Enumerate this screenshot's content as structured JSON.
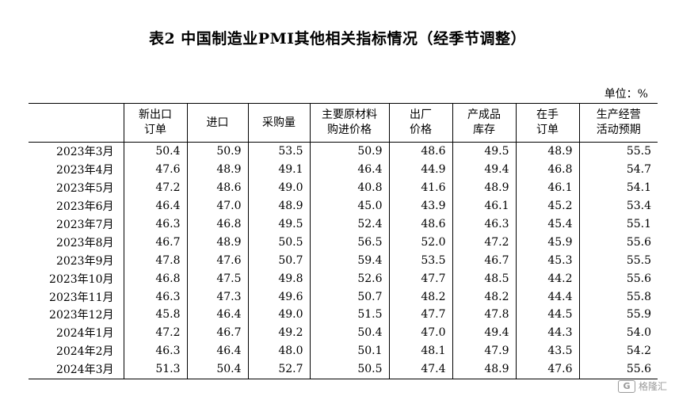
{
  "title": "表2 中国制造业PMI其他相关指标情况（经季节调整）",
  "unit": "单位：%",
  "columns": [
    "",
    [
      "新出口",
      "订单"
    ],
    [
      "进口"
    ],
    [
      "采购量"
    ],
    [
      "主要原材料",
      "购进价格"
    ],
    [
      "出厂",
      "价格"
    ],
    [
      "产成品",
      "库存"
    ],
    [
      "在手",
      "订单"
    ],
    [
      "生产经营",
      "活动预期"
    ]
  ],
  "rows": [
    [
      "2023年3月",
      "50.4",
      "50.9",
      "53.5",
      "50.9",
      "48.6",
      "49.5",
      "48.9",
      "55.5"
    ],
    [
      "2023年4月",
      "47.6",
      "48.9",
      "49.1",
      "46.4",
      "44.9",
      "49.4",
      "46.8",
      "54.7"
    ],
    [
      "2023年5月",
      "47.2",
      "48.6",
      "49.0",
      "40.8",
      "41.6",
      "48.9",
      "46.1",
      "54.1"
    ],
    [
      "2023年6月",
      "46.4",
      "47.0",
      "48.9",
      "45.0",
      "43.9",
      "46.1",
      "45.2",
      "53.4"
    ],
    [
      "2023年7月",
      "46.3",
      "46.8",
      "49.5",
      "52.4",
      "48.6",
      "46.3",
      "45.4",
      "55.1"
    ],
    [
      "2023年8月",
      "46.7",
      "48.9",
      "50.5",
      "56.5",
      "52.0",
      "47.2",
      "45.9",
      "55.6"
    ],
    [
      "2023年9月",
      "47.8",
      "47.6",
      "50.7",
      "59.4",
      "53.5",
      "46.7",
      "45.3",
      "55.5"
    ],
    [
      "2023年10月",
      "46.8",
      "47.5",
      "49.8",
      "52.6",
      "47.7",
      "48.5",
      "44.2",
      "55.6"
    ],
    [
      "2023年11月",
      "46.3",
      "47.3",
      "49.6",
      "50.7",
      "48.2",
      "48.2",
      "44.4",
      "55.8"
    ],
    [
      "2023年12月",
      "45.8",
      "46.4",
      "49.0",
      "51.5",
      "47.7",
      "47.8",
      "44.5",
      "55.9"
    ],
    [
      "2024年1月",
      "47.2",
      "46.7",
      "49.2",
      "50.4",
      "47.0",
      "49.4",
      "44.3",
      "54.0"
    ],
    [
      "2024年2月",
      "46.3",
      "46.4",
      "48.0",
      "50.1",
      "48.1",
      "47.9",
      "43.5",
      "54.2"
    ],
    [
      "2024年3月",
      "51.3",
      "50.4",
      "52.7",
      "50.5",
      "47.4",
      "48.9",
      "47.6",
      "55.6"
    ]
  ],
  "watermark": {
    "logo": "G",
    "text": "格隆汇"
  }
}
